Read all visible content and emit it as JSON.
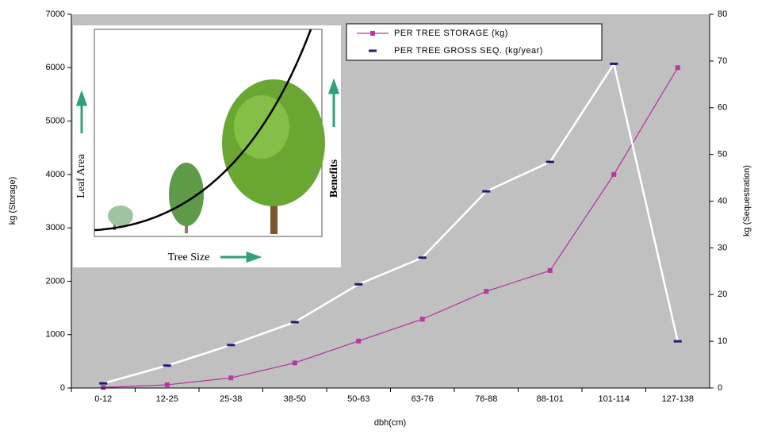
{
  "chart_data": {
    "type": "line",
    "categories": [
      "0-12",
      "12-25",
      "25-38",
      "38-50",
      "50-63",
      "63-76",
      "76-88",
      "88-101",
      "101-114",
      "127-138"
    ],
    "series": [
      {
        "name": "PER TREE STORAGE (kg)",
        "color": "#b5399f",
        "values": [
          10,
          60,
          190,
          470,
          880,
          1290,
          1810,
          2200,
          4000,
          6000
        ]
      },
      {
        "name": "PER TREE GROSS SEQ. (kg/year)",
        "color": "#ffffff",
        "marker_color": "#1c1c74",
        "axis": "y2",
        "values": [
          1,
          4.8,
          9.2,
          14.1,
          22.2,
          27.9,
          42.1,
          48.4,
          69.4,
          10
        ]
      }
    ],
    "x_label": "dbh(cm)",
    "y_label": "kg (Storage)",
    "y2_label": "kg (Sequestration)",
    "ylim": [
      0,
      7000
    ],
    "yticks": [
      0,
      1000,
      2000,
      3000,
      4000,
      5000,
      6000,
      7000
    ],
    "y2lim": [
      0,
      80
    ],
    "y2ticks": [
      0,
      10,
      20,
      30,
      40,
      50,
      60,
      70,
      80
    ],
    "legend": "top-right",
    "background": "#c0c0c0",
    "inset": {
      "y_label": "Leaf Area",
      "right_label": "Benefits",
      "x_label": "Tree Size"
    }
  }
}
